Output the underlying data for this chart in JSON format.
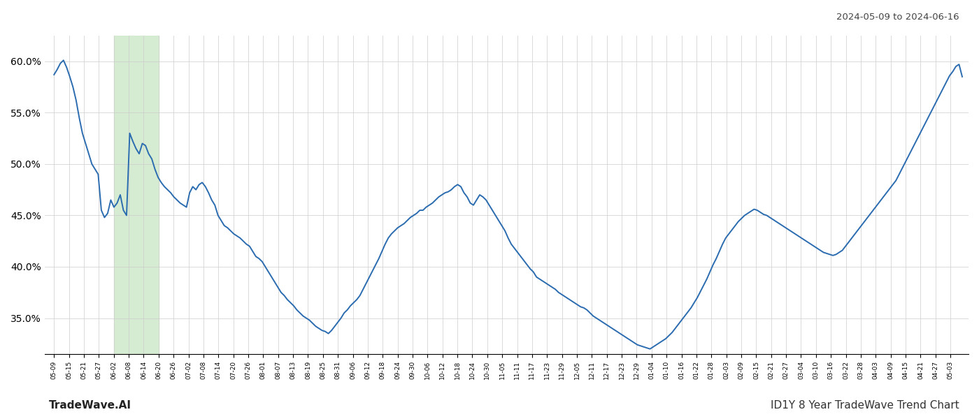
{
  "title_right": "2024-05-09 to 2024-06-16",
  "footer_left": "TradeWave.AI",
  "footer_right": "ID1Y 8 Year TradeWave Trend Chart",
  "ylim": [
    0.315,
    0.625
  ],
  "yticks": [
    0.35,
    0.4,
    0.45,
    0.5,
    0.55,
    0.6
  ],
  "line_color": "#2b6cb0",
  "line_width": 1.4,
  "highlight_color": "#d6ecd2",
  "background_color": "#ffffff",
  "grid_color": "#cccccc",
  "x_labels": [
    "05-09",
    "05-15",
    "05-21",
    "05-27",
    "06-02",
    "06-08",
    "06-14",
    "06-20",
    "06-26",
    "07-02",
    "07-08",
    "07-14",
    "07-20",
    "07-26",
    "08-01",
    "08-07",
    "08-13",
    "08-19",
    "08-25",
    "08-31",
    "09-06",
    "09-12",
    "09-18",
    "09-24",
    "09-30",
    "10-06",
    "10-12",
    "10-18",
    "10-24",
    "10-30",
    "11-05",
    "11-11",
    "11-17",
    "11-23",
    "11-29",
    "12-05",
    "12-11",
    "12-17",
    "12-23",
    "12-29",
    "01-04",
    "01-10",
    "01-16",
    "01-22",
    "01-28",
    "02-03",
    "02-09",
    "02-15",
    "02-21",
    "02-27",
    "03-04",
    "03-10",
    "03-16",
    "03-22",
    "03-28",
    "04-03",
    "04-09",
    "04-15",
    "04-21",
    "04-27",
    "05-03"
  ],
  "values": [
    0.587,
    0.592,
    0.598,
    0.601,
    0.594,
    0.585,
    0.575,
    0.562,
    0.545,
    0.53,
    0.52,
    0.51,
    0.5,
    0.495,
    0.49,
    0.455,
    0.448,
    0.452,
    0.465,
    0.458,
    0.462,
    0.47,
    0.455,
    0.45,
    0.53,
    0.522,
    0.515,
    0.51,
    0.52,
    0.518,
    0.51,
    0.505,
    0.495,
    0.487,
    0.482,
    0.478,
    0.475,
    0.472,
    0.468,
    0.465,
    0.462,
    0.46,
    0.458,
    0.472,
    0.478,
    0.475,
    0.48,
    0.482,
    0.478,
    0.472,
    0.465,
    0.46,
    0.45,
    0.445,
    0.44,
    0.438,
    0.435,
    0.432,
    0.43,
    0.428,
    0.425,
    0.422,
    0.42,
    0.415,
    0.41,
    0.408,
    0.405,
    0.4,
    0.395,
    0.39,
    0.385,
    0.38,
    0.375,
    0.372,
    0.368,
    0.365,
    0.362,
    0.358,
    0.355,
    0.352,
    0.35,
    0.348,
    0.345,
    0.342,
    0.34,
    0.338,
    0.337,
    0.335,
    0.338,
    0.342,
    0.346,
    0.35,
    0.355,
    0.358,
    0.362,
    0.365,
    0.368,
    0.372,
    0.378,
    0.384,
    0.39,
    0.396,
    0.402,
    0.408,
    0.415,
    0.422,
    0.428,
    0.432,
    0.435,
    0.438,
    0.44,
    0.442,
    0.445,
    0.448,
    0.45,
    0.452,
    0.455,
    0.455,
    0.458,
    0.46,
    0.462,
    0.465,
    0.468,
    0.47,
    0.472,
    0.473,
    0.475,
    0.478,
    0.48,
    0.478,
    0.472,
    0.468,
    0.462,
    0.46,
    0.465,
    0.47,
    0.468,
    0.465,
    0.46,
    0.455,
    0.45,
    0.445,
    0.44,
    0.435,
    0.428,
    0.422,
    0.418,
    0.414,
    0.41,
    0.406,
    0.402,
    0.398,
    0.395,
    0.39,
    0.388,
    0.386,
    0.384,
    0.382,
    0.38,
    0.378,
    0.375,
    0.373,
    0.371,
    0.369,
    0.367,
    0.365,
    0.363,
    0.361,
    0.36,
    0.358,
    0.355,
    0.352,
    0.35,
    0.348,
    0.346,
    0.344,
    0.342,
    0.34,
    0.338,
    0.336,
    0.334,
    0.332,
    0.33,
    0.328,
    0.326,
    0.324,
    0.323,
    0.322,
    0.321,
    0.32,
    0.322,
    0.324,
    0.326,
    0.328,
    0.33,
    0.333,
    0.336,
    0.34,
    0.344,
    0.348,
    0.352,
    0.356,
    0.36,
    0.365,
    0.37,
    0.376,
    0.382,
    0.388,
    0.395,
    0.402,
    0.408,
    0.415,
    0.422,
    0.428,
    0.432,
    0.436,
    0.44,
    0.444,
    0.447,
    0.45,
    0.452,
    0.454,
    0.456,
    0.455,
    0.453,
    0.451,
    0.45,
    0.448,
    0.446,
    0.444,
    0.442,
    0.44,
    0.438,
    0.436,
    0.434,
    0.432,
    0.43,
    0.428,
    0.426,
    0.424,
    0.422,
    0.42,
    0.418,
    0.416,
    0.414,
    0.413,
    0.412,
    0.411,
    0.412,
    0.414,
    0.416,
    0.42,
    0.424,
    0.428,
    0.432,
    0.436,
    0.44,
    0.444,
    0.448,
    0.452,
    0.456,
    0.46,
    0.464,
    0.468,
    0.472,
    0.476,
    0.48,
    0.484,
    0.49,
    0.496,
    0.502,
    0.508,
    0.514,
    0.52,
    0.526,
    0.532,
    0.538,
    0.544,
    0.55,
    0.556,
    0.562,
    0.568,
    0.574,
    0.58,
    0.586,
    0.59,
    0.595,
    0.597,
    0.585
  ],
  "highlight_x_start_label": "06-02",
  "highlight_x_end_label": "06-20"
}
